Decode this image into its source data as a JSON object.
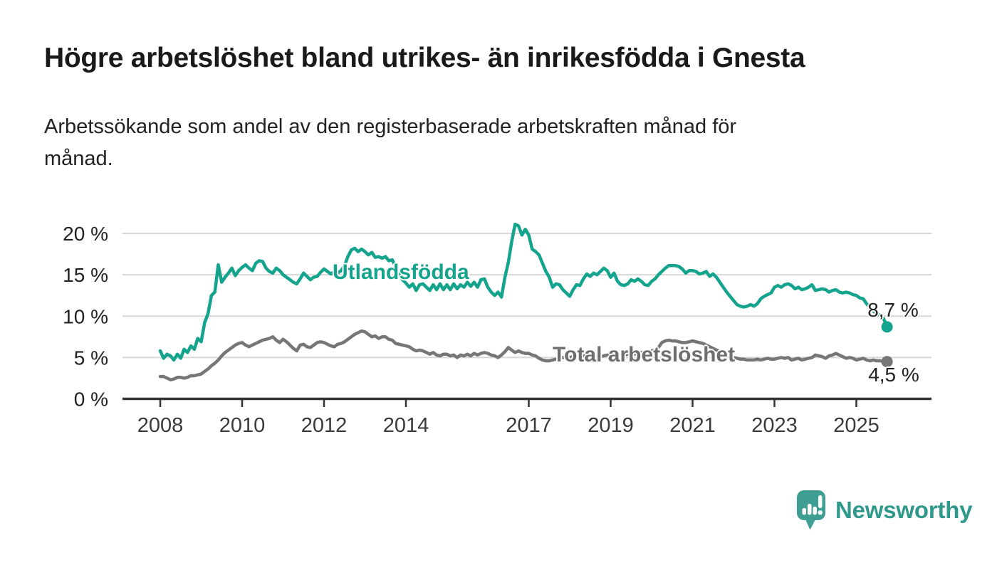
{
  "header": {
    "title": "Högre arbetslöshet bland utrikes- än inrikesfödda i Gnesta",
    "subtitle_line1": "Arbetssökande som andel av den registerbaserade arbetskraften månad för",
    "subtitle_line2": "månad."
  },
  "chart_data": {
    "type": "line",
    "title": "Högre arbetslöshet bland utrikes- än inrikesfödda i Gnesta",
    "subtitle": "Arbetssökande som andel av den registerbaserade arbetskraften månad för månad.",
    "frequency": "monthly",
    "start": "2008-01",
    "end": "2025-10",
    "xlabel": "",
    "ylabel": "",
    "ylim": [
      0,
      21.5
    ],
    "grid": true,
    "legend": "inline-labels",
    "x_axis": {
      "tick_years": [
        2008,
        2010,
        2012,
        2014,
        2017,
        2019,
        2021,
        2023,
        2025
      ]
    },
    "y_axis": {
      "unit": "%",
      "ticks": [
        {
          "value": 0,
          "label": "0 %"
        },
        {
          "value": 5,
          "label": "5 %"
        },
        {
          "value": 10,
          "label": "10 %"
        },
        {
          "value": 15,
          "label": "15 %"
        },
        {
          "value": 20,
          "label": "20 %"
        }
      ]
    },
    "series": [
      {
        "name": "Utlandsfödda",
        "color": "#14a38c",
        "end_label": "8,7 %",
        "last_value": 8.7,
        "values": [
          5.8,
          4.9,
          5.4,
          5.2,
          4.7,
          5.4,
          4.9,
          6.0,
          5.6,
          6.4,
          6.0,
          7.3,
          6.9,
          9.2,
          10.3,
          12.5,
          12.9,
          16.2,
          14.1,
          14.7,
          15.2,
          15.8,
          14.9,
          15.5,
          15.9,
          16.2,
          15.8,
          15.5,
          16.4,
          16.7,
          16.6,
          15.8,
          15.4,
          15.2,
          15.8,
          15.5,
          15.0,
          14.7,
          14.4,
          14.1,
          13.9,
          14.5,
          15.2,
          14.8,
          14.4,
          14.7,
          14.8,
          15.3,
          15.7,
          15.4,
          15.1,
          15.4,
          15.2,
          15.5,
          16.1,
          17.2,
          18.0,
          18.2,
          17.8,
          18.1,
          17.8,
          17.4,
          17.7,
          17.1,
          17.2,
          17.0,
          17.2,
          16.7,
          16.8,
          16.0,
          15.2,
          14.4,
          14.0,
          13.5,
          13.9,
          13.1,
          13.8,
          13.9,
          13.5,
          13.1,
          13.8,
          13.2,
          13.9,
          13.2,
          13.8,
          13.2,
          13.9,
          13.3,
          13.8,
          13.5,
          14.1,
          13.6,
          14.1,
          13.5,
          14.4,
          14.5,
          13.5,
          12.9,
          12.5,
          12.9,
          12.3,
          14.7,
          16.5,
          19.0,
          21.1,
          20.9,
          19.8,
          20.5,
          19.8,
          18.1,
          17.8,
          17.4,
          16.4,
          15.4,
          14.7,
          13.5,
          13.9,
          13.8,
          13.2,
          12.8,
          12.4,
          13.2,
          13.8,
          13.7,
          14.5,
          15.1,
          14.8,
          15.2,
          15.0,
          15.4,
          15.8,
          15.5,
          14.7,
          15.2,
          14.2,
          13.8,
          13.7,
          13.9,
          14.4,
          14.2,
          14.5,
          14.2,
          13.8,
          13.7,
          14.2,
          14.5,
          15.0,
          15.4,
          15.8,
          16.1,
          16.1,
          16.1,
          16.0,
          15.7,
          15.2,
          15.5,
          15.5,
          15.4,
          15.1,
          15.2,
          15.4,
          14.8,
          15.1,
          14.7,
          14.1,
          13.5,
          12.9,
          12.4,
          11.9,
          11.4,
          11.2,
          11.1,
          11.2,
          11.4,
          11.2,
          11.5,
          12.1,
          12.4,
          12.6,
          12.8,
          13.5,
          13.7,
          13.5,
          13.8,
          13.9,
          13.7,
          13.3,
          13.5,
          13.2,
          13.3,
          13.5,
          13.8,
          13.1,
          13.2,
          13.3,
          13.2,
          12.9,
          13.1,
          13.2,
          12.9,
          12.8,
          12.9,
          12.8,
          12.6,
          12.5,
          12.2,
          12.1,
          11.5,
          11.0,
          10.6,
          10.3,
          10.1,
          9.7,
          8.7
        ]
      },
      {
        "name": "Total arbetslöshet",
        "color": "#767676",
        "end_label": "4,5 %",
        "last_value": 4.5,
        "values": [
          2.7,
          2.7,
          2.5,
          2.3,
          2.4,
          2.6,
          2.6,
          2.5,
          2.6,
          2.8,
          2.8,
          2.9,
          3.0,
          3.3,
          3.6,
          4.0,
          4.3,
          4.7,
          5.2,
          5.6,
          5.9,
          6.2,
          6.5,
          6.7,
          6.8,
          6.5,
          6.3,
          6.5,
          6.7,
          6.9,
          7.1,
          7.2,
          7.3,
          7.5,
          7.1,
          6.8,
          7.2,
          6.9,
          6.5,
          6.1,
          5.8,
          6.5,
          6.6,
          6.3,
          6.2,
          6.5,
          6.8,
          6.9,
          6.8,
          6.6,
          6.4,
          6.3,
          6.6,
          6.7,
          6.9,
          7.2,
          7.5,
          7.8,
          8.0,
          8.2,
          8.1,
          7.8,
          7.5,
          7.6,
          7.3,
          7.5,
          7.5,
          7.2,
          7.1,
          6.7,
          6.6,
          6.5,
          6.4,
          6.3,
          6.0,
          5.8,
          5.9,
          5.8,
          5.6,
          5.4,
          5.6,
          5.3,
          5.2,
          5.4,
          5.4,
          5.2,
          5.3,
          5.0,
          5.3,
          5.2,
          5.4,
          5.2,
          5.5,
          5.3,
          5.5,
          5.6,
          5.5,
          5.3,
          5.2,
          5.0,
          5.3,
          5.7,
          6.2,
          5.9,
          5.6,
          5.8,
          5.6,
          5.5,
          5.5,
          5.3,
          5.2,
          4.9,
          4.7,
          4.6,
          4.6,
          4.7,
          4.8,
          4.9,
          5.0,
          5.0,
          5.0,
          5.1,
          5.0,
          5.1,
          5.2,
          5.1,
          5.0,
          5.1,
          5.2,
          5.1,
          5.2,
          5.3,
          5.3,
          5.2,
          5.3,
          5.4,
          5.3,
          5.4,
          5.5,
          5.4,
          5.5,
          5.6,
          5.5,
          5.6,
          5.8,
          5.9,
          6.2,
          6.8,
          7.0,
          7.1,
          7.0,
          7.0,
          6.9,
          6.8,
          6.8,
          6.9,
          7.0,
          6.9,
          6.8,
          6.7,
          6.5,
          6.3,
          6.1,
          5.9,
          5.7,
          5.5,
          5.3,
          5.1,
          5.0,
          4.9,
          4.8,
          4.8,
          4.7,
          4.7,
          4.7,
          4.8,
          4.7,
          4.8,
          4.9,
          4.8,
          4.8,
          4.9,
          5.0,
          4.9,
          5.0,
          4.7,
          4.8,
          4.9,
          4.7,
          4.8,
          4.9,
          5.0,
          5.3,
          5.2,
          5.1,
          4.9,
          5.2,
          5.3,
          5.5,
          5.3,
          5.1,
          4.9,
          5.0,
          4.9,
          4.7,
          4.8,
          4.9,
          4.7,
          4.6,
          4.7,
          4.6,
          4.6,
          4.5,
          4.5
        ]
      }
    ]
  },
  "footer": {
    "brand": "Newsworthy",
    "brand_color": "#2f9a8c",
    "icon_color": "#3f9e92"
  },
  "colors": {
    "background": "#ffffff",
    "title_text": "#1a1a1a",
    "axis_line": "#333333",
    "gridline": "#d8d8d8",
    "tick_label": "#3a3a3a",
    "teal_series": "#14a38c",
    "gray_series": "#767676"
  }
}
